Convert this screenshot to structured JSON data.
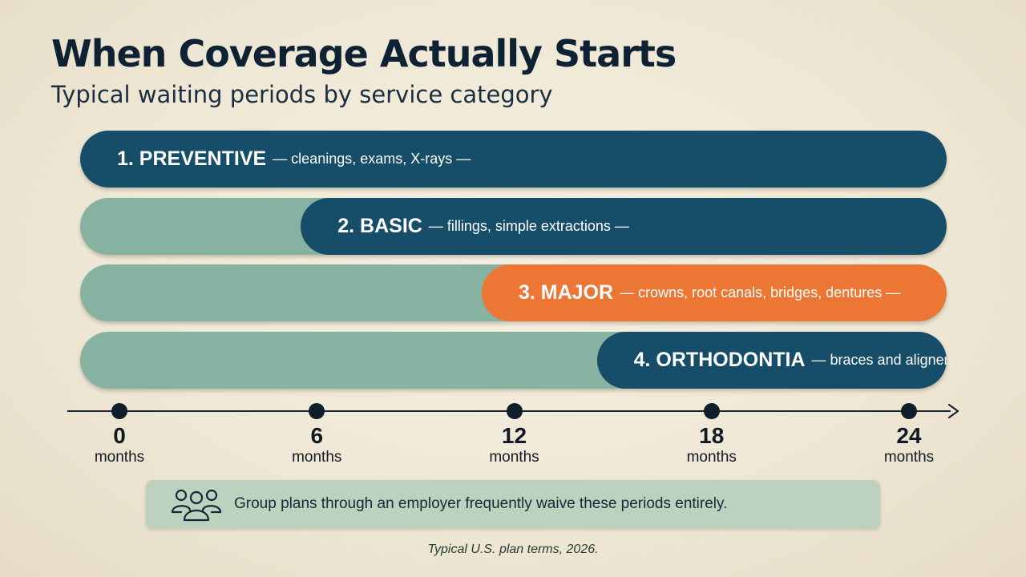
{
  "header": {
    "title": "When Coverage Actually Starts",
    "subtitle": "Typical waiting periods by service category"
  },
  "colors": {
    "navy": "#164d68",
    "orange": "#ec7634",
    "sage": "#87b2a1",
    "note_bg": "#bdd2be"
  },
  "chart_data": {
    "type": "bar",
    "axis": {
      "ticks": [
        {
          "value": 0,
          "label": "0",
          "unit": "months"
        },
        {
          "value": 6,
          "label": "6",
          "unit": "months"
        },
        {
          "value": 12,
          "label": "12",
          "unit": "months"
        },
        {
          "value": 18,
          "label": "18",
          "unit": "months"
        },
        {
          "value": 24,
          "label": "24",
          "unit": "months"
        }
      ],
      "range": [
        0,
        24
      ]
    },
    "categories": [
      {
        "name": "1. PREVENTIVE",
        "desc": "— cleanings, exams, X-rays —",
        "wait_months": 0,
        "color": "#164d68"
      },
      {
        "name": "2. BASIC",
        "desc": "— fillings, simple extractions —",
        "wait_months": 6,
        "color": "#164d68"
      },
      {
        "name": "3. MAJOR",
        "desc": "— crowns, root canals, bridges, dentures —",
        "wait_months": 11.5,
        "color": "#ec7634"
      },
      {
        "name": "4. ORTHODONTIA",
        "desc": "— braces and aligners —",
        "wait_months": 15,
        "color": "#164d68"
      }
    ]
  },
  "note": {
    "icon": "people-group-icon",
    "text": "Group plans through an employer frequently waive these periods entirely."
  },
  "footnote": "Typical U.S. plan terms, 2026."
}
